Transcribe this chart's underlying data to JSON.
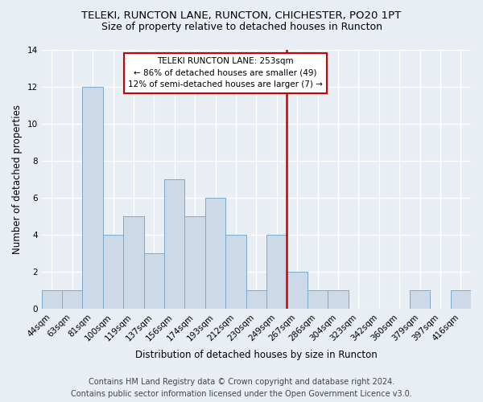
{
  "title1": "TELEKI, RUNCTON LANE, RUNCTON, CHICHESTER, PO20 1PT",
  "title2": "Size of property relative to detached houses in Runcton",
  "xlabel": "Distribution of detached houses by size in Runcton",
  "ylabel": "Number of detached properties",
  "footnote1": "Contains HM Land Registry data © Crown copyright and database right 2024.",
  "footnote2": "Contains public sector information licensed under the Open Government Licence v3.0.",
  "categories": [
    "44sqm",
    "63sqm",
    "81sqm",
    "100sqm",
    "119sqm",
    "137sqm",
    "156sqm",
    "174sqm",
    "193sqm",
    "212sqm",
    "230sqm",
    "249sqm",
    "267sqm",
    "286sqm",
    "304sqm",
    "323sqm",
    "342sqm",
    "360sqm",
    "379sqm",
    "397sqm",
    "416sqm"
  ],
  "values": [
    1,
    1,
    12,
    4,
    5,
    3,
    7,
    5,
    6,
    4,
    1,
    4,
    2,
    1,
    1,
    0,
    0,
    0,
    1,
    0,
    1
  ],
  "bar_color": "#ccd9e8",
  "bar_edge_color": "#7aaacb",
  "vline_x": 11.5,
  "annotation_line1": "TELEKI RUNCTON LANE: 253sqm",
  "annotation_line2": "← 86% of detached houses are smaller (49)",
  "annotation_line3": "12% of semi-detached houses are larger (7) →",
  "annotation_box_color": "#ffffff",
  "annotation_box_edge": "#cc0000",
  "vline_color": "#cc0000",
  "ylim": [
    0,
    14
  ],
  "background_color": "#e8eef4",
  "grid_color": "#ffffff",
  "title1_fontsize": 9.5,
  "title2_fontsize": 9,
  "axis_label_fontsize": 8.5,
  "tick_fontsize": 7.5,
  "footnote_fontsize": 7
}
